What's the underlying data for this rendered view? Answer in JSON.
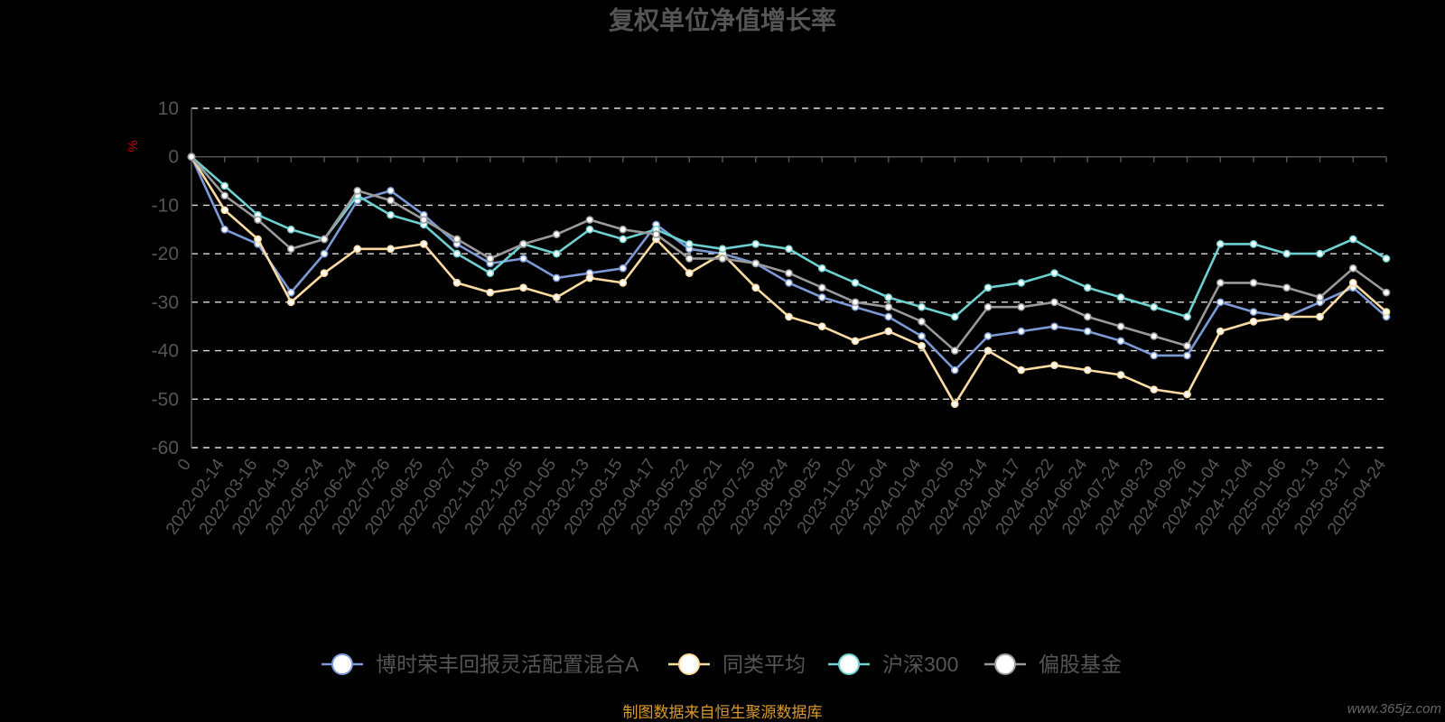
{
  "chart_data": {
    "type": "line",
    "title": "复权单位净值增长率",
    "ylabel": "%",
    "ylim": [
      -60,
      10
    ],
    "yticks": [
      10,
      0,
      -10,
      -20,
      -30,
      -40,
      -50,
      -60
    ],
    "grid": true,
    "legend_position": "bottom",
    "x_labels": [
      "0",
      "2022-02-14",
      "2022-03-16",
      "2022-04-19",
      "2022-05-24",
      "2022-06-24",
      "2022-07-26",
      "2022-08-25",
      "2022-09-27",
      "2022-11-03",
      "2022-12-05",
      "2023-01-05",
      "2023-02-13",
      "2023-03-15",
      "2023-04-17",
      "2023-05-22",
      "2023-06-21",
      "2023-07-25",
      "2023-08-24",
      "2023-09-25",
      "2023-11-02",
      "2023-12-04",
      "2024-01-04",
      "2024-02-05",
      "2024-03-14",
      "2024-04-17",
      "2024-05-22",
      "2024-06-24",
      "2024-07-24",
      "2024-08-23",
      "2024-09-26",
      "2024-11-04",
      "2024-12-04",
      "2025-01-06",
      "2025-02-13",
      "2025-03-17",
      "2025-04-24"
    ],
    "series": [
      {
        "name": "博时荣丰回报灵活配置混合A",
        "color": "#7b9ad6",
        "values": [
          0,
          -15,
          -18,
          -28,
          -20,
          -9,
          -7,
          -12,
          -18,
          -22,
          -21,
          -25,
          -24,
          -23,
          -14,
          -19,
          -20,
          -22,
          -26,
          -29,
          -31,
          -33,
          -37,
          -44,
          -37,
          -36,
          -35,
          -36,
          -38,
          -41,
          -41,
          -30,
          -32,
          -33,
          -30,
          -27,
          -33
        ]
      },
      {
        "name": "同类平均",
        "color": "#fcdba2",
        "values": [
          0,
          -11,
          -17,
          -30,
          -24,
          -19,
          -19,
          -18,
          -26,
          -28,
          -27,
          -29,
          -25,
          -26,
          -17,
          -24,
          -20,
          -27,
          -33,
          -35,
          -38,
          -36,
          -39,
          -51,
          -40,
          -44,
          -43,
          -44,
          -45,
          -48,
          -49,
          -36,
          -34,
          -33,
          -33,
          -26,
          -32
        ]
      },
      {
        "name": "沪深300",
        "color": "#6ed1d1",
        "values": [
          0,
          -6,
          -12,
          -15,
          -17,
          -8,
          -12,
          -14,
          -20,
          -24,
          -18,
          -20,
          -15,
          -17,
          -15,
          -18,
          -19,
          -18,
          -19,
          -23,
          -26,
          -29,
          -31,
          -33,
          -27,
          -26,
          -24,
          -27,
          -29,
          -31,
          -33,
          -18,
          -18,
          -20,
          -20,
          -17,
          -21
        ]
      },
      {
        "name": "偏股基金",
        "color": "#9a9a9a",
        "values": [
          0,
          -8,
          -13,
          -19,
          -17,
          -7,
          -9,
          -13,
          -17,
          -21,
          -18,
          -16,
          -13,
          -15,
          -16,
          -21,
          -21,
          -22,
          -24,
          -27,
          -30,
          -31,
          -34,
          -40,
          -31,
          -31,
          -30,
          -33,
          -35,
          -37,
          -39,
          -26,
          -26,
          -27,
          -29,
          -23,
          -28
        ]
      }
    ]
  },
  "legend": [
    "博时荣丰回报灵活配置混合A",
    "同类平均",
    "沪深300",
    "偏股基金"
  ],
  "source_note": "制图数据来自恒生聚源数据库",
  "watermark": "www.365jz.com"
}
